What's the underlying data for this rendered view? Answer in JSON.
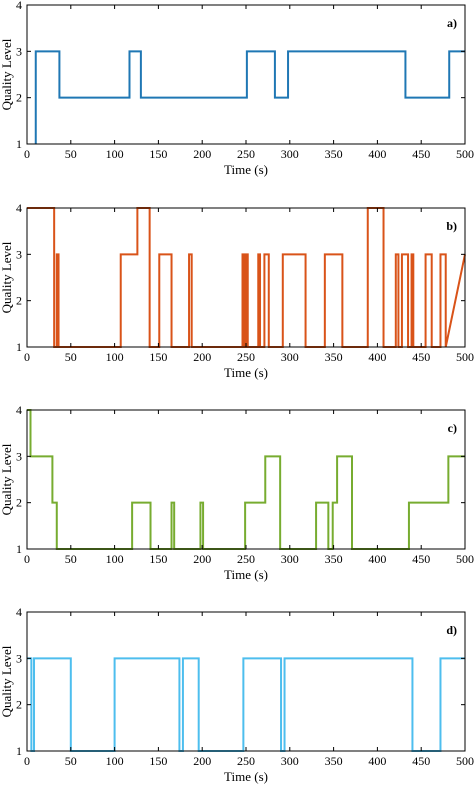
{
  "chart_data": [
    {
      "type": "line",
      "panel_label": "a)",
      "xlabel": "Time (s)",
      "ylabel": "Quality Level",
      "xlim": [
        0,
        500
      ],
      "ylim": [
        1,
        4
      ],
      "xticks": [
        0,
        50,
        100,
        150,
        200,
        250,
        300,
        350,
        400,
        450,
        500
      ],
      "yticks": [
        1,
        2,
        3,
        4
      ],
      "color": "#1f77b4",
      "series": [
        {
          "x": [
            10,
            10,
            37,
            37,
            117,
            117,
            130,
            130,
            251,
            251,
            283,
            283,
            298,
            298,
            432,
            432,
            482,
            482,
            500
          ],
          "y": [
            1,
            3,
            3,
            2,
            2,
            3,
            3,
            2,
            2,
            3,
            3,
            2,
            2,
            3,
            3,
            2,
            2,
            3,
            3
          ]
        }
      ]
    },
    {
      "type": "line",
      "panel_label": "b)",
      "xlabel": "Time (s)",
      "ylabel": "Quality Level",
      "xlim": [
        0,
        500
      ],
      "ylim": [
        1,
        4
      ],
      "xticks": [
        0,
        50,
        100,
        150,
        200,
        250,
        300,
        350,
        400,
        450,
        500
      ],
      "yticks": [
        1,
        2,
        3,
        4
      ],
      "color": "#d95319",
      "series": [
        {
          "x": [
            0,
            31,
            31,
            34,
            34,
            36,
            36,
            107,
            107,
            126,
            126,
            140,
            140,
            151,
            151,
            165,
            165,
            185,
            185,
            188,
            188,
            190,
            190,
            246,
            246,
            248,
            248,
            250,
            250,
            252,
            252,
            264,
            264,
            266,
            266,
            271,
            271,
            276,
            276,
            292,
            292,
            318,
            318,
            340,
            340,
            360,
            360,
            389,
            389,
            407,
            407,
            421,
            421,
            424,
            424,
            428,
            428,
            435,
            435,
            439,
            439,
            441,
            441,
            455,
            455,
            462,
            462,
            472,
            472,
            478,
            478,
            500
          ],
          "y": [
            4,
            4,
            1,
            1,
            3,
            3,
            1,
            1,
            3,
            3,
            4,
            4,
            1,
            1,
            3,
            3,
            1,
            1,
            3,
            3,
            1,
            1,
            1,
            1,
            3,
            3,
            1,
            1,
            3,
            3,
            1,
            1,
            3,
            3,
            1,
            1,
            3,
            3,
            1,
            1,
            3,
            3,
            1,
            1,
            3,
            3,
            1,
            1,
            4,
            4,
            1,
            1,
            3,
            3,
            1,
            1,
            3,
            3,
            1,
            1,
            3,
            3,
            1,
            1,
            3,
            3,
            1,
            1,
            3,
            3,
            1,
            3
          ]
        }
      ]
    },
    {
      "type": "line",
      "panel_label": "c)",
      "xlabel": "Time (s)",
      "ylabel": "Quality Level",
      "xlim": [
        0,
        500
      ],
      "ylim": [
        1,
        4
      ],
      "xticks": [
        0,
        50,
        100,
        150,
        200,
        250,
        300,
        350,
        400,
        450,
        500
      ],
      "yticks": [
        1,
        2,
        3,
        4
      ],
      "color": "#77ac30",
      "series": [
        {
          "x": [
            0,
            4,
            4,
            29,
            29,
            34,
            34,
            37,
            37,
            120,
            120,
            141,
            141,
            165,
            165,
            168,
            168,
            198,
            198,
            201,
            201,
            249,
            249,
            272,
            272,
            289,
            289,
            330,
            330,
            344,
            344,
            349,
            349,
            354,
            354,
            371,
            371,
            436,
            436,
            472,
            472,
            481,
            481,
            494,
            494,
            500
          ],
          "y": [
            4,
            4,
            3,
            3,
            2,
            2,
            1,
            1,
            1,
            1,
            2,
            2,
            1,
            1,
            2,
            2,
            1,
            1,
            2,
            2,
            1,
            1,
            2,
            2,
            3,
            3,
            1,
            1,
            2,
            2,
            1,
            1,
            2,
            2,
            3,
            3,
            1,
            1,
            2,
            2,
            2,
            2,
            3,
            3,
            3,
            3
          ]
        }
      ]
    },
    {
      "type": "line",
      "panel_label": "d)",
      "xlabel": "Time (s)",
      "ylabel": "Quality Level",
      "xlim": [
        0,
        500
      ],
      "ylim": [
        1,
        4
      ],
      "xticks": [
        0,
        50,
        100,
        150,
        200,
        250,
        300,
        350,
        400,
        450,
        500
      ],
      "yticks": [
        1,
        2,
        3,
        4
      ],
      "color": "#4dbeee",
      "series": [
        {
          "x": [
            0,
            5,
            5,
            8,
            8,
            50,
            50,
            100,
            100,
            174,
            174,
            178,
            178,
            196,
            196,
            247,
            247,
            290,
            290,
            294,
            294,
            440,
            440,
            472,
            472,
            500
          ],
          "y": [
            3,
            3,
            1,
            1,
            3,
            3,
            1,
            1,
            3,
            3,
            1,
            1,
            3,
            3,
            1,
            1,
            3,
            3,
            1,
            1,
            3,
            3,
            1,
            1,
            3,
            3
          ]
        }
      ]
    }
  ]
}
